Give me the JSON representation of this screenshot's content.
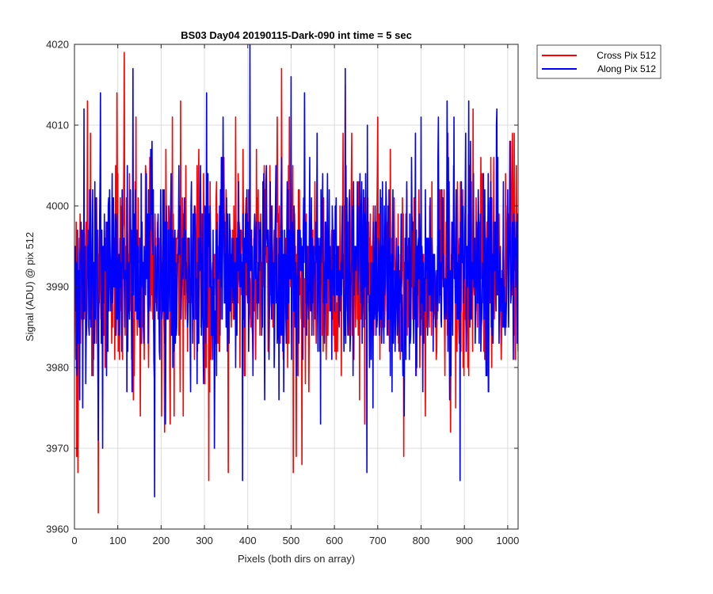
{
  "chart_data": {
    "type": "line",
    "title": "BS03 Day04 20190115-Dark-090 int time = 5 sec",
    "xlabel": "Pixels (both dirs on array)",
    "ylabel": "Signal (ADU) @ pix 512",
    "xlim": [
      0,
      1024
    ],
    "ylim": [
      3960,
      4020
    ],
    "xticks": [
      0,
      100,
      200,
      300,
      400,
      500,
      600,
      700,
      800,
      900,
      1000
    ],
    "yticks": [
      3960,
      3970,
      3980,
      3990,
      4000,
      4010,
      4020
    ],
    "grid": true,
    "legend_position": "outside-top-right",
    "series": [
      {
        "name": "Cross Pix 512",
        "color": "#ff0000",
        "x_start": 1,
        "x_step": 1,
        "noise_model": "dense random noise around mean",
        "mean": 3992,
        "spread_std": 6.5,
        "min": 3962,
        "max": 4019,
        "num_points": 1024,
        "notable_points": [
          {
            "x": 5,
            "y": 3969
          },
          {
            "x": 8,
            "y": 3967
          },
          {
            "x": 30,
            "y": 4013
          },
          {
            "x": 55,
            "y": 3962
          },
          {
            "x": 98,
            "y": 4014
          },
          {
            "x": 115,
            "y": 4019
          },
          {
            "x": 142,
            "y": 4011
          },
          {
            "x": 152,
            "y": 3974
          },
          {
            "x": 230,
            "y": 3974
          },
          {
            "x": 245,
            "y": 4013
          },
          {
            "x": 310,
            "y": 3966
          },
          {
            "x": 355,
            "y": 3967
          },
          {
            "x": 420,
            "y": 4007
          },
          {
            "x": 468,
            "y": 4011
          },
          {
            "x": 478,
            "y": 4017
          },
          {
            "x": 505,
            "y": 3967
          },
          {
            "x": 512,
            "y": 3969
          },
          {
            "x": 525,
            "y": 3968
          },
          {
            "x": 620,
            "y": 4009
          },
          {
            "x": 625,
            "y": 4015
          },
          {
            "x": 640,
            "y": 4009
          },
          {
            "x": 700,
            "y": 4011
          },
          {
            "x": 760,
            "y": 3969
          },
          {
            "x": 868,
            "y": 3972
          },
          {
            "x": 880,
            "y": 3975
          },
          {
            "x": 920,
            "y": 4012
          },
          {
            "x": 1020,
            "y": 4005
          }
        ]
      },
      {
        "name": "Along Pix 512",
        "color": "#0000ff",
        "x_start": 1,
        "x_step": 1,
        "noise_model": "dense random noise around mean",
        "mean": 3992,
        "spread_std": 6.5,
        "min": 3964,
        "max": 4020,
        "num_points": 1024,
        "notable_points": [
          {
            "x": 22,
            "y": 4012
          },
          {
            "x": 55,
            "y": 3971
          },
          {
            "x": 60,
            "y": 4014
          },
          {
            "x": 65,
            "y": 3970
          },
          {
            "x": 135,
            "y": 4017
          },
          {
            "x": 185,
            "y": 3964
          },
          {
            "x": 305,
            "y": 4014
          },
          {
            "x": 388,
            "y": 3966
          },
          {
            "x": 405,
            "y": 4020
          },
          {
            "x": 500,
            "y": 4016
          },
          {
            "x": 560,
            "y": 4009
          },
          {
            "x": 625,
            "y": 4017
          },
          {
            "x": 675,
            "y": 3967
          },
          {
            "x": 800,
            "y": 4011
          },
          {
            "x": 860,
            "y": 4013
          },
          {
            "x": 890,
            "y": 3966
          },
          {
            "x": 910,
            "y": 4013
          }
        ]
      }
    ]
  }
}
